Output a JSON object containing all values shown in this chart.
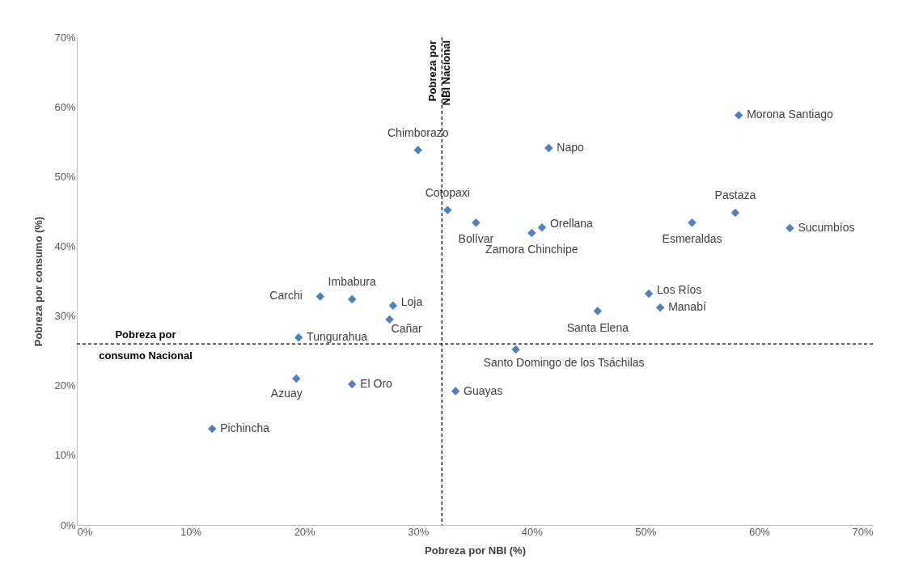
{
  "chart_data": {
    "type": "scatter",
    "xlabel": "Pobreza por NBI (%)",
    "ylabel": "Pobreza por consumo (%)",
    "marker": "diamond",
    "grid": false,
    "xlim": [
      0,
      70
    ],
    "ylim": [
      0,
      70
    ],
    "xticks": [
      {
        "value": 0,
        "label": "0%"
      },
      {
        "value": 10,
        "label": "10%"
      },
      {
        "value": 20,
        "label": "20%"
      },
      {
        "value": 30,
        "label": "30%"
      },
      {
        "value": 40,
        "label": "40%"
      },
      {
        "value": 50,
        "label": "50%"
      },
      {
        "value": 60,
        "label": "60%"
      },
      {
        "value": 70,
        "label": "70%"
      }
    ],
    "yticks": [
      {
        "value": 0,
        "label": "0%"
      },
      {
        "value": 10,
        "label": "10%"
      },
      {
        "value": 20,
        "label": "20%"
      },
      {
        "value": 30,
        "label": "30%"
      },
      {
        "value": 40,
        "label": "40%"
      },
      {
        "value": 50,
        "label": "50%"
      },
      {
        "value": 60,
        "label": "60%"
      },
      {
        "value": 70,
        "label": "70%"
      }
    ],
    "series": [
      {
        "name": "Morona Santiago",
        "color": "#4f81bd",
        "x": [
          58.2
        ],
        "values": [
          58.8
        ]
      },
      {
        "name": "Chimborazo",
        "color": "#4f81bd",
        "x": [
          30.0
        ],
        "values": [
          53.8
        ]
      },
      {
        "name": "Napo",
        "color": "#4f81bd",
        "x": [
          41.5
        ],
        "values": [
          54.1
        ]
      },
      {
        "name": "Cotopaxi",
        "color": "#4f81bd",
        "x": [
          32.6
        ],
        "values": [
          45.2
        ]
      },
      {
        "name": "Bolívar",
        "color": "#4f81bd",
        "x": [
          35.1
        ],
        "values": [
          43.4
        ]
      },
      {
        "name": "Orellana",
        "color": "#4f81bd",
        "x": [
          40.9
        ],
        "values": [
          42.7
        ]
      },
      {
        "name": "Zamora Chinchipe",
        "color": "#4f81bd",
        "x": [
          40.0
        ],
        "values": [
          41.9
        ]
      },
      {
        "name": "Pastaza",
        "color": "#4f81bd",
        "x": [
          57.9
        ],
        "values": [
          44.8
        ]
      },
      {
        "name": "Esmeraldas",
        "color": "#4f81bd",
        "x": [
          54.1
        ],
        "values": [
          43.4
        ]
      },
      {
        "name": "Sucumbíos",
        "color": "#4f81bd",
        "x": [
          62.7
        ],
        "values": [
          42.6
        ]
      },
      {
        "name": "Imbabura",
        "color": "#4f81bd",
        "x": [
          24.2
        ],
        "values": [
          32.4
        ]
      },
      {
        "name": "Carchi",
        "color": "#4f81bd",
        "x": [
          21.4
        ],
        "values": [
          32.8
        ]
      },
      {
        "name": "Loja",
        "color": "#4f81bd",
        "x": [
          27.8
        ],
        "values": [
          31.5
        ]
      },
      {
        "name": "Cañar",
        "color": "#4f81bd",
        "x": [
          27.5
        ],
        "values": [
          29.5
        ]
      },
      {
        "name": "Tungurahua",
        "color": "#4f81bd",
        "x": [
          19.5
        ],
        "values": [
          26.9
        ]
      },
      {
        "name": "Los Ríos",
        "color": "#4f81bd",
        "x": [
          50.3
        ],
        "values": [
          33.2
        ]
      },
      {
        "name": "Manabí",
        "color": "#4f81bd",
        "x": [
          51.3
        ],
        "values": [
          31.2
        ]
      },
      {
        "name": "Santa Elena",
        "color": "#4f81bd",
        "x": [
          45.8
        ],
        "values": [
          30.7
        ]
      },
      {
        "name": "Santo Domingo de los Tsáchilas",
        "color": "#4f81bd",
        "x": [
          38.6
        ],
        "values": [
          25.2
        ]
      },
      {
        "name": "Azuay",
        "color": "#4f81bd",
        "x": [
          19.3
        ],
        "values": [
          21.0
        ]
      },
      {
        "name": "El Oro",
        "color": "#4f81bd",
        "x": [
          24.2
        ],
        "values": [
          20.2
        ]
      },
      {
        "name": "Guayas",
        "color": "#4f81bd",
        "x": [
          33.3
        ],
        "values": [
          19.2
        ]
      },
      {
        "name": "Pichincha",
        "color": "#4f81bd",
        "x": [
          11.9
        ],
        "values": [
          13.8
        ]
      }
    ],
    "ref_lines": [
      {
        "axis": "x",
        "value": 32.1,
        "label": "Pobreza por\nNBI Nacional",
        "line_style": "dashed",
        "color": "#000000"
      },
      {
        "axis": "y",
        "value": 26.0,
        "label": "Pobreza por\nconsumo Nacional",
        "line_style": "dashed",
        "color": "#000000"
      }
    ]
  }
}
